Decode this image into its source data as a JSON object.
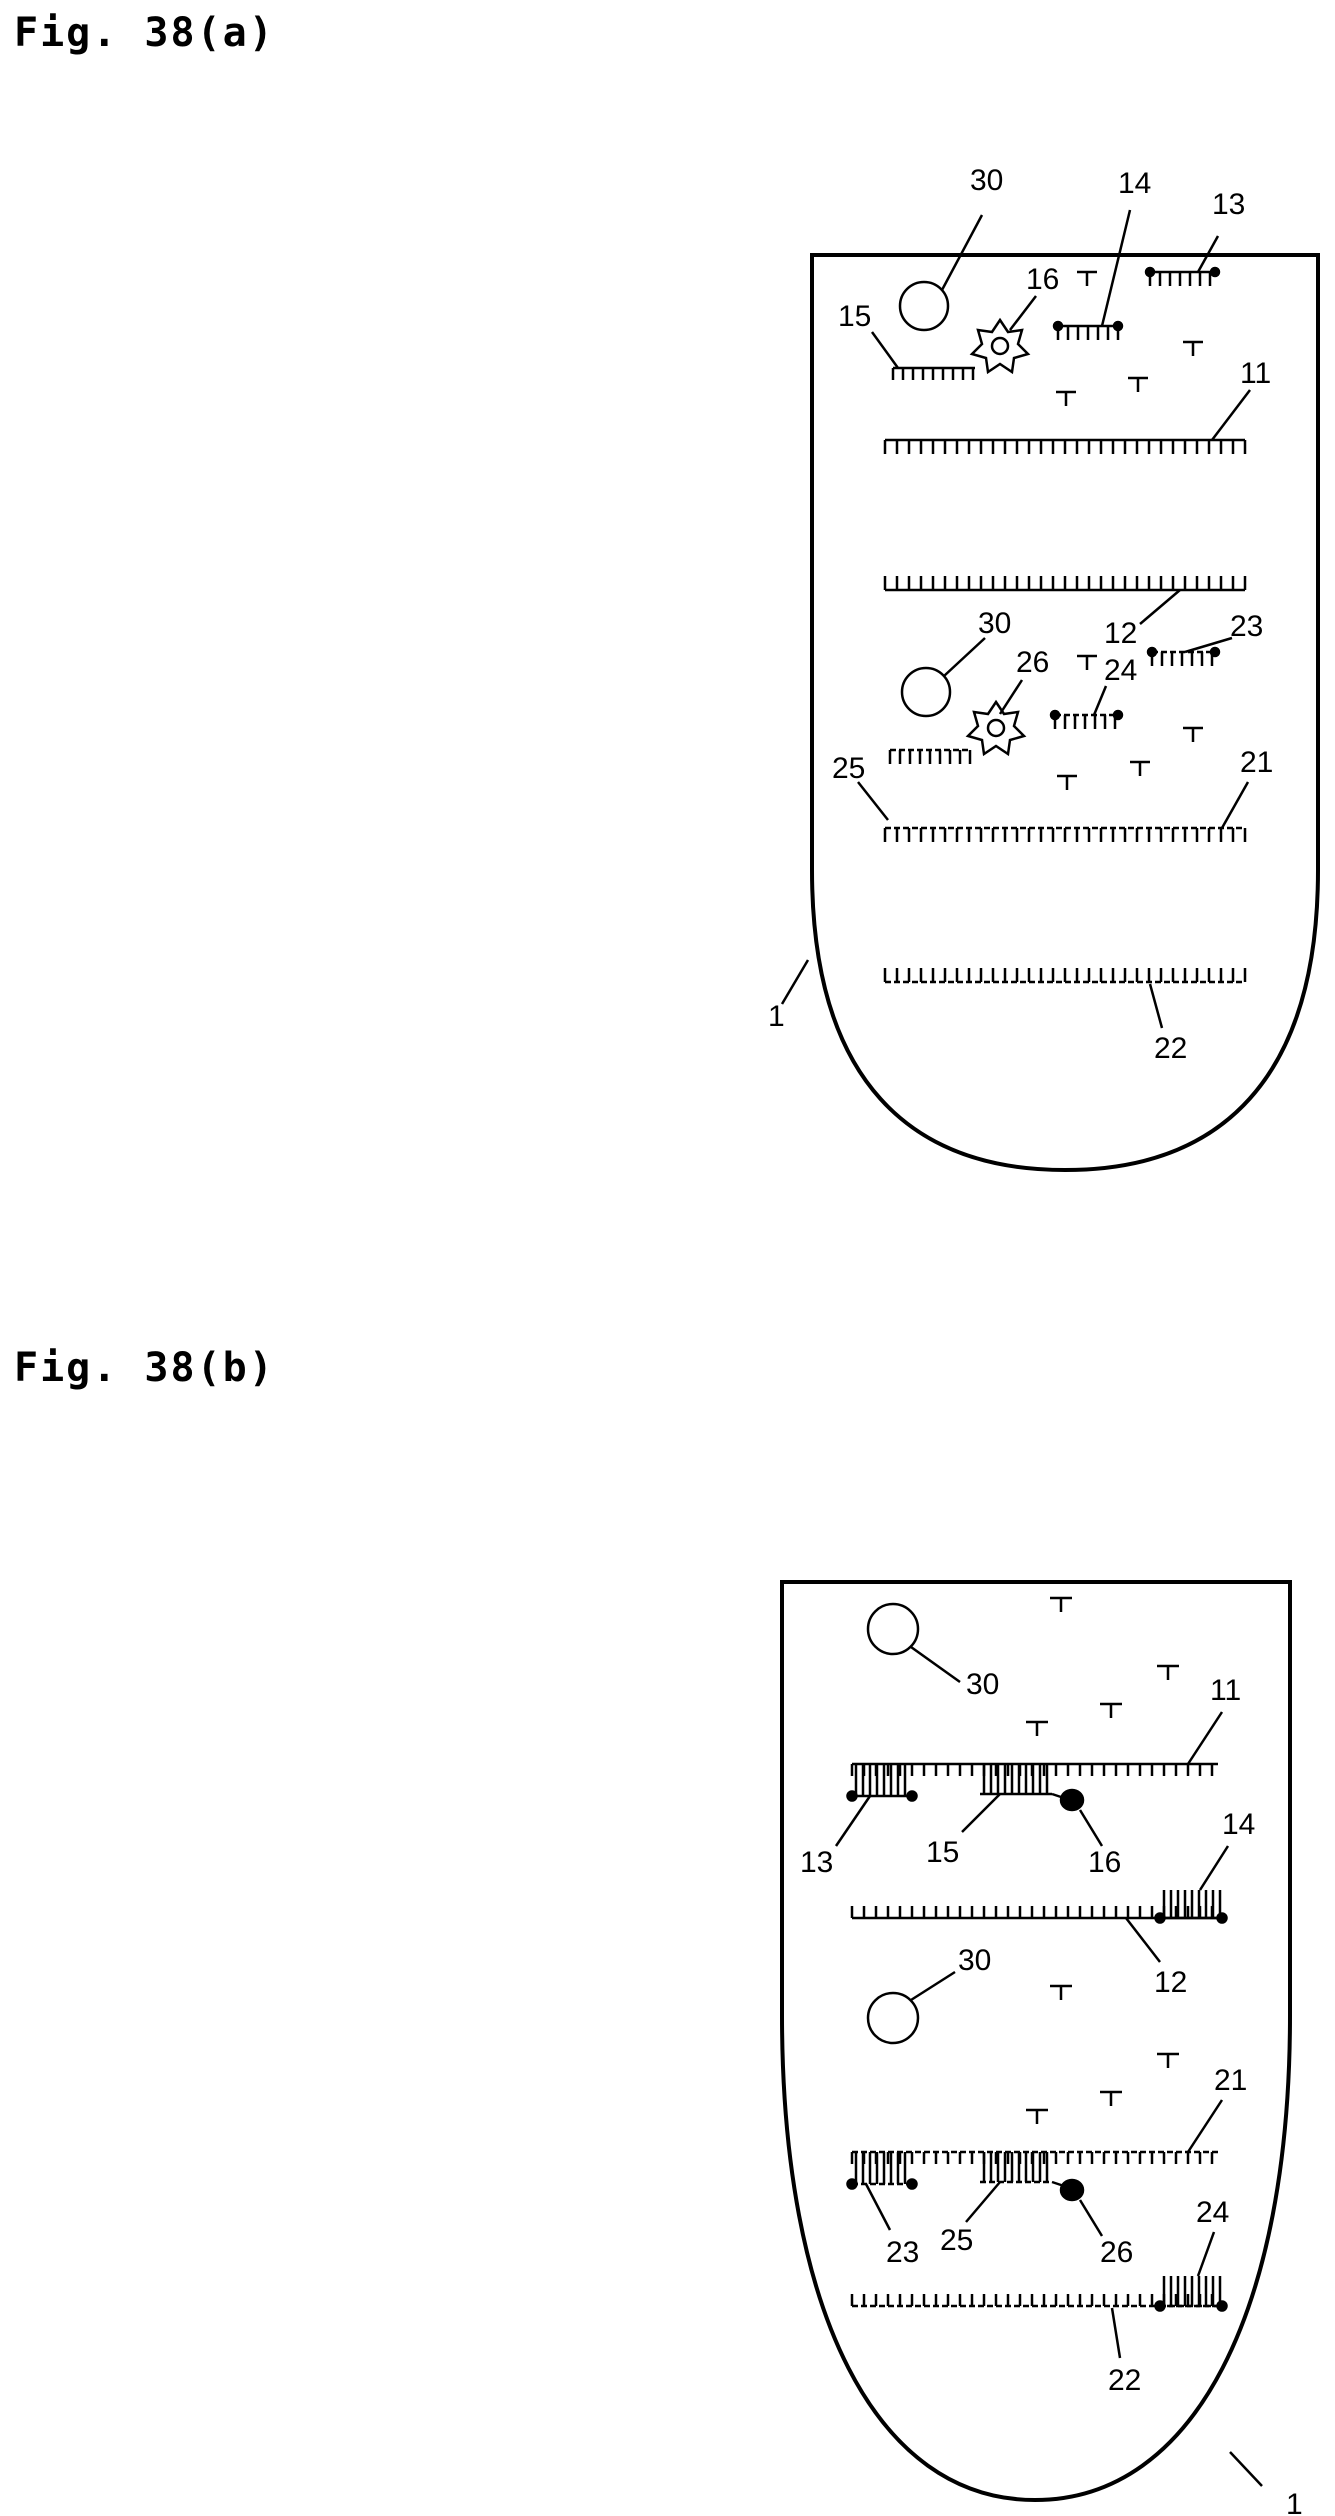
{
  "figures": [
    {
      "title": "Fig. 38(a)",
      "labels": {
        "l30a": "30",
        "l14a": "14",
        "l13a": "13",
        "l16a": "16",
        "l15a": "15",
        "l11a": "11",
        "l12a": "12",
        "l23a": "23",
        "l30b": "30",
        "l26a": "26",
        "l24a": "24",
        "l21a": "21",
        "l25a": "25",
        "l1a": "1",
        "l22a": "22"
      }
    },
    {
      "title": "Fig. 38(b)",
      "labels": {
        "l30c": "30",
        "l11b": "11",
        "l13b": "13",
        "l15b": "15",
        "l16b": "16",
        "l14b": "14",
        "l12b": "12",
        "l30d": "30",
        "l21b": "21",
        "l23b": "23",
        "l25b": "25",
        "l26b": "26",
        "l24b": "24",
        "l22b": "22",
        "l1b": "1"
      }
    }
  ]
}
